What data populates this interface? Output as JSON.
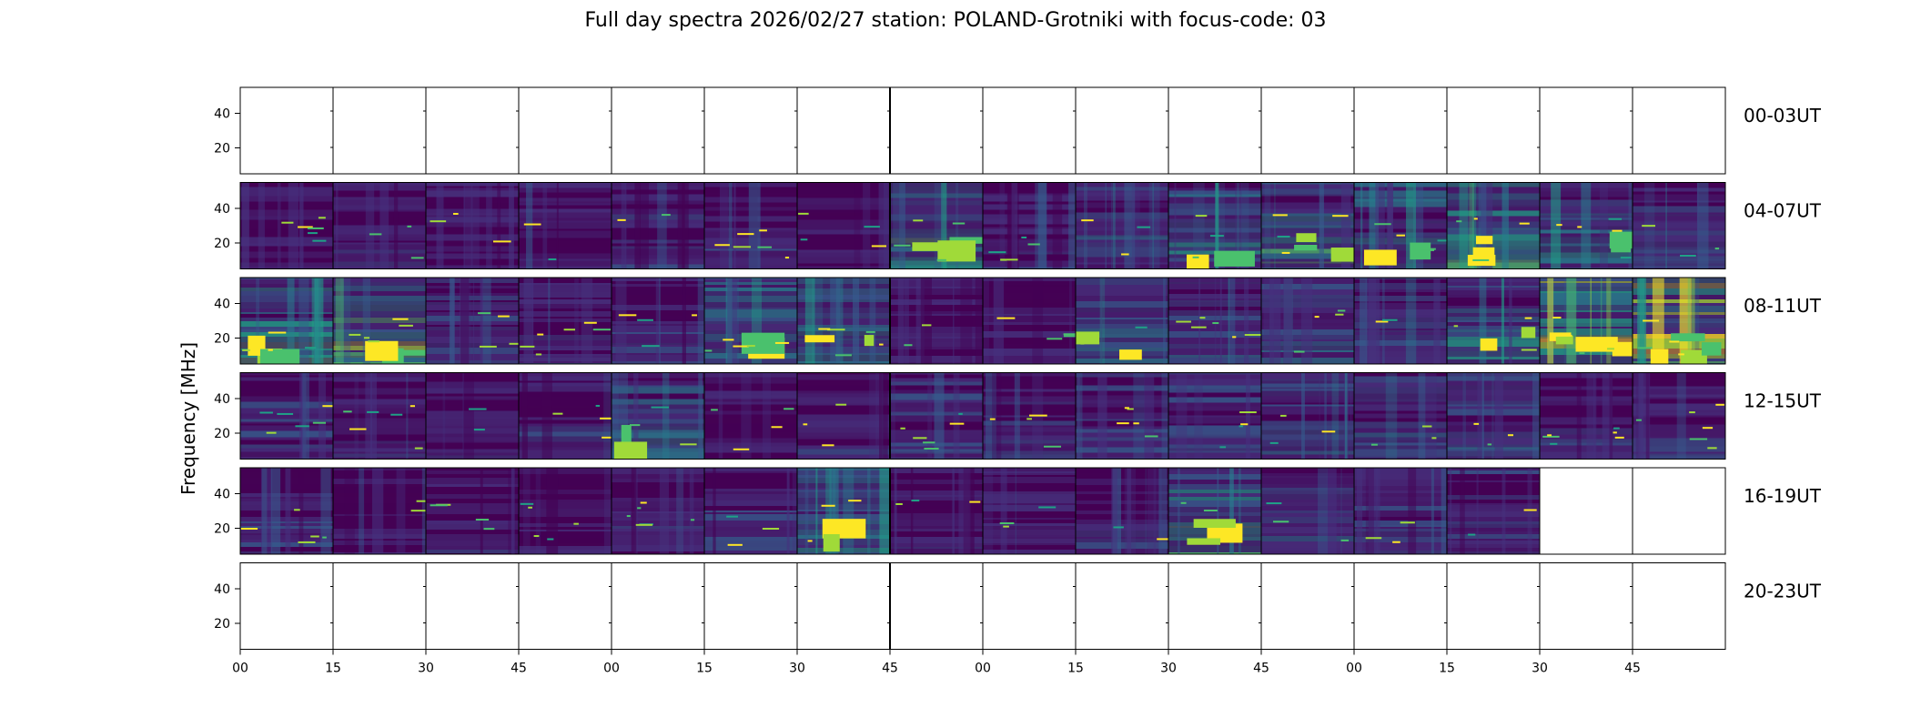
{
  "chart_data": {
    "type": "heatmap",
    "title": "Full day spectra 2026/02/27 station: POLAND-Grotniki with focus-code: 03",
    "ylabel": "Frequency [MHz]",
    "y_ticks": [
      40,
      20
    ],
    "ylim": [
      5,
      55
    ],
    "x_tick_labels": [
      "00",
      "15",
      "30",
      "45",
      "00",
      "15",
      "30",
      "45",
      "00",
      "15",
      "30",
      "45",
      "00",
      "15",
      "30",
      "45"
    ],
    "colormap": [
      "#440154",
      "#46327e",
      "#365c8d",
      "#277f8e",
      "#1fa187",
      "#4ac16d",
      "#a0da39",
      "#fde725"
    ],
    "rows": [
      {
        "label": "00-03UT",
        "intensity": [
          0,
          0,
          0,
          0,
          0,
          0,
          0,
          0,
          0,
          0,
          0,
          0,
          0,
          0,
          0,
          0
        ]
      },
      {
        "label": "04-07UT",
        "intensity": [
          0.16,
          0.2,
          0.17,
          0.2,
          0.24,
          0.2,
          0.16,
          0.5,
          0.22,
          0.3,
          0.42,
          0.55,
          0.4,
          0.55,
          0.42,
          0.28
        ]
      },
      {
        "label": "08-11UT",
        "intensity": [
          0.55,
          0.6,
          0.3,
          0.2,
          0.22,
          0.42,
          0.42,
          0.18,
          0.18,
          0.42,
          0.3,
          0.35,
          0.28,
          0.45,
          0.72,
          0.78
        ]
      },
      {
        "label": "12-15UT",
        "intensity": [
          0.25,
          0.22,
          0.2,
          0.25,
          0.45,
          0.18,
          0.22,
          0.3,
          0.25,
          0.28,
          0.3,
          0.32,
          0.34,
          0.3,
          0.26,
          0.25
        ]
      },
      {
        "label": "16-19UT",
        "intensity": [
          0.24,
          0.2,
          0.2,
          0.22,
          0.22,
          0.24,
          0.45,
          0.2,
          0.2,
          0.22,
          0.55,
          0.3,
          0.25,
          0.25,
          0,
          0
        ]
      },
      {
        "label": "20-23UT",
        "intensity": [
          0,
          0,
          0,
          0,
          0,
          0,
          0,
          0,
          0,
          0,
          0,
          0,
          0,
          0,
          0,
          0
        ]
      }
    ]
  }
}
